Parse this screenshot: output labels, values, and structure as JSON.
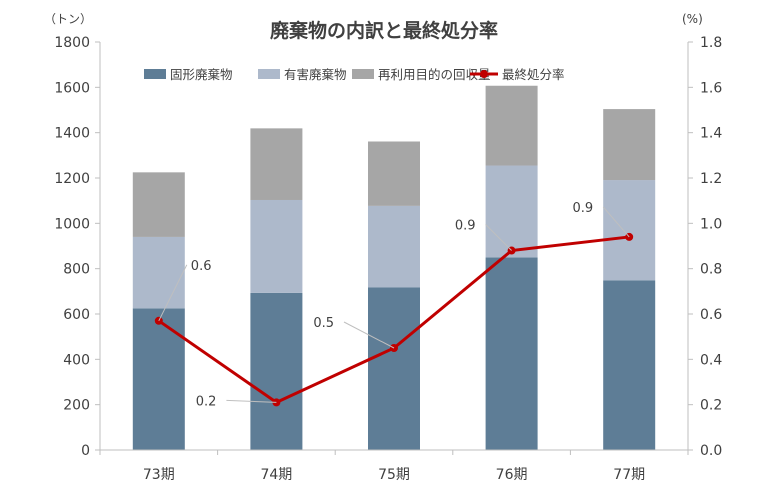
{
  "chart_data": {
    "type": "bar",
    "title": "廃棄物の内訳と最終処分率",
    "left_unit": "（トン）",
    "right_unit": "(%)",
    "categories": [
      "73期",
      "74期",
      "75期",
      "76期",
      "77期"
    ],
    "stacked": true,
    "ylim_left": [
      0,
      1800
    ],
    "yticks_left": [
      "0",
      "200",
      "400",
      "600",
      "800",
      "1000",
      "1200",
      "1400",
      "1600",
      "1800"
    ],
    "ylim_right": [
      0,
      1.8
    ],
    "yticks_right": [
      "0.0",
      "0.2",
      "0.4",
      "0.6",
      "0.8",
      "1.0",
      "1.2",
      "1.4",
      "1.6",
      "1.8"
    ],
    "series": [
      {
        "name": "固形廃棄物",
        "type": "bar",
        "axis": "left",
        "color": "#5e7d96",
        "values": [
          625,
          693,
          717,
          850,
          748
        ]
      },
      {
        "name": "有害廃棄物",
        "type": "bar",
        "axis": "left",
        "color": "#adb9cb",
        "values": [
          315,
          410,
          360,
          405,
          443
        ]
      },
      {
        "name": "再利用目的の回収量",
        "type": "bar",
        "axis": "left",
        "color": "#a6a6a6",
        "values": [
          285,
          316,
          284,
          352,
          313
        ]
      },
      {
        "name": "最終処分率",
        "type": "line",
        "axis": "right",
        "color": "#c00000",
        "values": [
          0.57,
          0.21,
          0.45,
          0.88,
          0.94
        ],
        "data_labels": [
          "0.6",
          "0.2",
          "0.5",
          "0.9",
          "0.9"
        ]
      }
    ],
    "legend_position": "top",
    "grid": false
  }
}
